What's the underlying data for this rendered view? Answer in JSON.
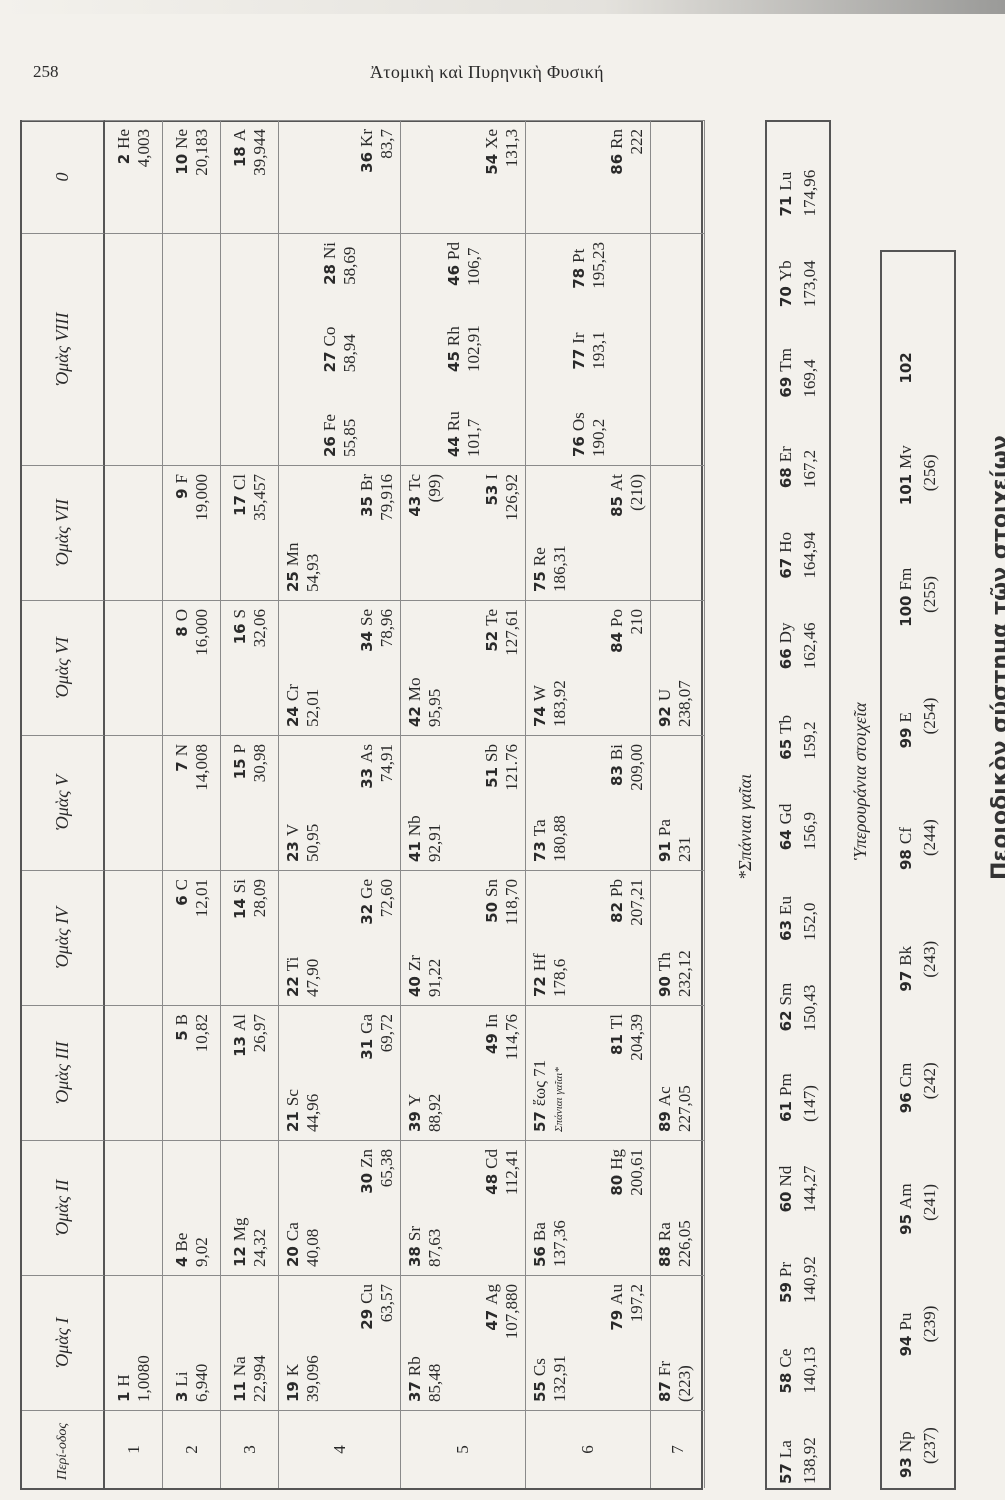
{
  "page": {
    "number": "258",
    "running_head": "Ἀτομικὴ καὶ Πυρηνικὴ Φυσική",
    "title": "Περιοδικὸν σύστημα τῶν στοιχείων"
  },
  "table": {
    "period_header": "Περί-οδος",
    "group_headers": [
      "Ὁμὰς I",
      "Ὁμὰς II",
      "Ὁμὰς III",
      "Ὁμὰς IV",
      "Ὁμὰς V",
      "Ὁμὰς VI",
      "Ὁμὰς VII",
      "Ὁμὰς VIII",
      "0"
    ],
    "rows": [
      {
        "period": "1",
        "cells": [
          [
            {
              "n": "1",
              "s": "H",
              "w": "1,0080"
            }
          ],
          [],
          [],
          [],
          [],
          [],
          [],
          [],
          [
            {
              "n": "2",
              "s": "He",
              "w": "4,003"
            }
          ]
        ]
      },
      {
        "period": "2",
        "cells": [
          [
            {
              "n": "3",
              "s": "Li",
              "w": "6,940"
            }
          ],
          [
            {
              "n": "4",
              "s": "Be",
              "w": "9,02"
            }
          ],
          [
            {
              "n": "5",
              "s": "B",
              "w": "10,82"
            }
          ],
          [
            {
              "n": "6",
              "s": "C",
              "w": "12,01"
            }
          ],
          [
            {
              "n": "7",
              "s": "N",
              "w": "14,008"
            }
          ],
          [
            {
              "n": "8",
              "s": "O",
              "w": "16,000"
            }
          ],
          [
            {
              "n": "9",
              "s": "F",
              "w": "19,000"
            }
          ],
          [],
          [
            {
              "n": "10",
              "s": "Ne",
              "w": "20,183"
            }
          ]
        ]
      },
      {
        "period": "3",
        "cells": [
          [
            {
              "n": "11",
              "s": "Na",
              "w": "22,994"
            }
          ],
          [
            {
              "n": "12",
              "s": "Mg",
              "w": "24,32"
            }
          ],
          [
            {
              "n": "13",
              "s": "Al",
              "w": "26,97"
            }
          ],
          [
            {
              "n": "14",
              "s": "Si",
              "w": "28,09"
            }
          ],
          [
            {
              "n": "15",
              "s": "P",
              "w": "30,98"
            }
          ],
          [
            {
              "n": "16",
              "s": "S",
              "w": "32,06"
            }
          ],
          [
            {
              "n": "17",
              "s": "Cl",
              "w": "35,457"
            }
          ],
          [],
          [
            {
              "n": "18",
              "s": "A",
              "w": "39,944"
            }
          ]
        ]
      },
      {
        "period": "4",
        "cells": [
          [
            {
              "n": "19",
              "s": "K",
              "w": "39,096"
            },
            {
              "n": "29",
              "s": "Cu",
              "w": "63,57"
            }
          ],
          [
            {
              "n": "20",
              "s": "Ca",
              "w": "40,08"
            },
            {
              "n": "30",
              "s": "Zn",
              "w": "65,38"
            }
          ],
          [
            {
              "n": "21",
              "s": "Sc",
              "w": "44,96"
            },
            {
              "n": "31",
              "s": "Ga",
              "w": "69,72"
            }
          ],
          [
            {
              "n": "22",
              "s": "Ti",
              "w": "47,90"
            },
            {
              "n": "32",
              "s": "Ge",
              "w": "72,60"
            }
          ],
          [
            {
              "n": "23",
              "s": "V",
              "w": "50,95"
            },
            {
              "n": "33",
              "s": "As",
              "w": "74,91"
            }
          ],
          [
            {
              "n": "24",
              "s": "Cr",
              "w": "52,01"
            },
            {
              "n": "34",
              "s": "Se",
              "w": "78,96"
            }
          ],
          [
            {
              "n": "25",
              "s": "Mn",
              "w": "54,93"
            },
            {
              "n": "35",
              "s": "Br",
              "w": "79,916"
            }
          ],
          [
            {
              "n": "26",
              "s": "Fe",
              "w": "55,85"
            },
            {
              "n": "27",
              "s": "Co",
              "w": "58,94"
            },
            {
              "n": "28",
              "s": "Ni",
              "w": "58,69"
            }
          ],
          [
            {
              "n": "36",
              "s": "Kr",
              "w": "83,7"
            }
          ]
        ]
      },
      {
        "period": "5",
        "cells": [
          [
            {
              "n": "37",
              "s": "Rb",
              "w": "85,48"
            },
            {
              "n": "47",
              "s": "Ag",
              "w": "107,880"
            }
          ],
          [
            {
              "n": "38",
              "s": "Sr",
              "w": "87,63"
            },
            {
              "n": "48",
              "s": "Cd",
              "w": "112,41"
            }
          ],
          [
            {
              "n": "39",
              "s": "Y",
              "w": "88,92"
            },
            {
              "n": "49",
              "s": "In",
              "w": "114,76"
            }
          ],
          [
            {
              "n": "40",
              "s": "Zr",
              "w": "91,22"
            },
            {
              "n": "50",
              "s": "Sn",
              "w": "118,70"
            }
          ],
          [
            {
              "n": "41",
              "s": "Nb",
              "w": "92,91"
            },
            {
              "n": "51",
              "s": "Sb",
              "w": "121.76"
            }
          ],
          [
            {
              "n": "42",
              "s": "Mo",
              "w": "95,95"
            },
            {
              "n": "52",
              "s": "Te",
              "w": "127,61"
            }
          ],
          [
            {
              "n": "43",
              "s": "Tc",
              "w": "(99)"
            },
            {
              "n": "53",
              "s": "I",
              "w": "126,92"
            }
          ],
          [
            {
              "n": "44",
              "s": "Ru",
              "w": "101,7"
            },
            {
              "n": "45",
              "s": "Rh",
              "w": "102,91"
            },
            {
              "n": "46",
              "s": "Pd",
              "w": "106,7"
            }
          ],
          [
            {
              "n": "54",
              "s": "Xe",
              "w": "131,3"
            }
          ]
        ]
      },
      {
        "period": "6",
        "cells": [
          [
            {
              "n": "55",
              "s": "Cs",
              "w": "132,91"
            },
            {
              "n": "79",
              "s": "Au",
              "w": "197,2"
            }
          ],
          [
            {
              "n": "56",
              "s": "Ba",
              "w": "137,36"
            },
            {
              "n": "80",
              "s": "Hg",
              "w": "200,61"
            }
          ],
          [
            {
              "n": "57",
              "s": "ἕως 71",
              "w": "Σπάνιαι γαῖαι*"
            },
            {
              "n": "81",
              "s": "Tl",
              "w": "204,39"
            }
          ],
          [
            {
              "n": "72",
              "s": "Hf",
              "w": "178,6"
            },
            {
              "n": "82",
              "s": "Pb",
              "w": "207,21"
            }
          ],
          [
            {
              "n": "73",
              "s": "Ta",
              "w": "180,88"
            },
            {
              "n": "83",
              "s": "Bi",
              "w": "209,00"
            }
          ],
          [
            {
              "n": "74",
              "s": "W",
              "w": "183,92"
            },
            {
              "n": "84",
              "s": "Po",
              "w": "210"
            }
          ],
          [
            {
              "n": "75",
              "s": "Re",
              "w": "186,31"
            },
            {
              "n": "85",
              "s": "At",
              "w": "(210)"
            }
          ],
          [
            {
              "n": "76",
              "s": "Os",
              "w": "190,2"
            },
            {
              "n": "77",
              "s": "Ir",
              "w": "193,1"
            },
            {
              "n": "78",
              "s": "Pt",
              "w": "195,23"
            }
          ],
          [
            {
              "n": "86",
              "s": "Rn",
              "w": "222"
            }
          ]
        ]
      },
      {
        "period": "7",
        "cells": [
          [
            {
              "n": "87",
              "s": "Fr",
              "w": "(223)"
            }
          ],
          [
            {
              "n": "88",
              "s": "Ra",
              "w": "226,05"
            }
          ],
          [
            {
              "n": "89",
              "s": "Ac",
              "w": "227,05"
            }
          ],
          [
            {
              "n": "90",
              "s": "Th",
              "w": "232,12"
            }
          ],
          [
            {
              "n": "91",
              "s": "Pa",
              "w": "231"
            }
          ],
          [
            {
              "n": "92",
              "s": "U",
              "w": "238,07"
            }
          ],
          [],
          [],
          []
        ]
      }
    ]
  },
  "rare_earths": {
    "label": "*Σπάνιαι γαῖαι",
    "elements": [
      {
        "n": "57",
        "s": "La",
        "w": "138,92"
      },
      {
        "n": "58",
        "s": "Ce",
        "w": "140,13"
      },
      {
        "n": "59",
        "s": "Pr",
        "w": "140,92"
      },
      {
        "n": "60",
        "s": "Nd",
        "w": "144,27"
      },
      {
        "n": "61",
        "s": "Pm",
        "w": "(147)"
      },
      {
        "n": "62",
        "s": "Sm",
        "w": "150,43"
      },
      {
        "n": "63",
        "s": "Eu",
        "w": "152,0"
      },
      {
        "n": "64",
        "s": "Gd",
        "w": "156,9"
      },
      {
        "n": "65",
        "s": "Tb",
        "w": "159,2"
      },
      {
        "n": "66",
        "s": "Dy",
        "w": "162,46"
      },
      {
        "n": "67",
        "s": "Ho",
        "w": "164,94"
      },
      {
        "n": "68",
        "s": "Er",
        "w": "167,2"
      },
      {
        "n": "69",
        "s": "Tm",
        "w": "169,4"
      },
      {
        "n": "70",
        "s": "Yb",
        "w": "173,04"
      },
      {
        "n": "71",
        "s": "Lu",
        "w": "174,96"
      }
    ]
  },
  "transuranium": {
    "label": "Ὑπερουράνια στοιχεῖα",
    "elements": [
      {
        "n": "93",
        "s": "Np",
        "w": "(237)"
      },
      {
        "n": "94",
        "s": "Pu",
        "w": "(239)"
      },
      {
        "n": "95",
        "s": "Am",
        "w": "(241)"
      },
      {
        "n": "96",
        "s": "Cm",
        "w": "(242)"
      },
      {
        "n": "97",
        "s": "Bk",
        "w": "(243)"
      },
      {
        "n": "98",
        "s": "Cf",
        "w": "(244)"
      },
      {
        "n": "99",
        "s": "E",
        "w": "(254)"
      },
      {
        "n": "100",
        "s": "Fm",
        "w": "(255)"
      },
      {
        "n": "101",
        "s": "Mv",
        "w": "(256)"
      },
      {
        "n": "102",
        "s": "",
        "w": ""
      }
    ]
  }
}
